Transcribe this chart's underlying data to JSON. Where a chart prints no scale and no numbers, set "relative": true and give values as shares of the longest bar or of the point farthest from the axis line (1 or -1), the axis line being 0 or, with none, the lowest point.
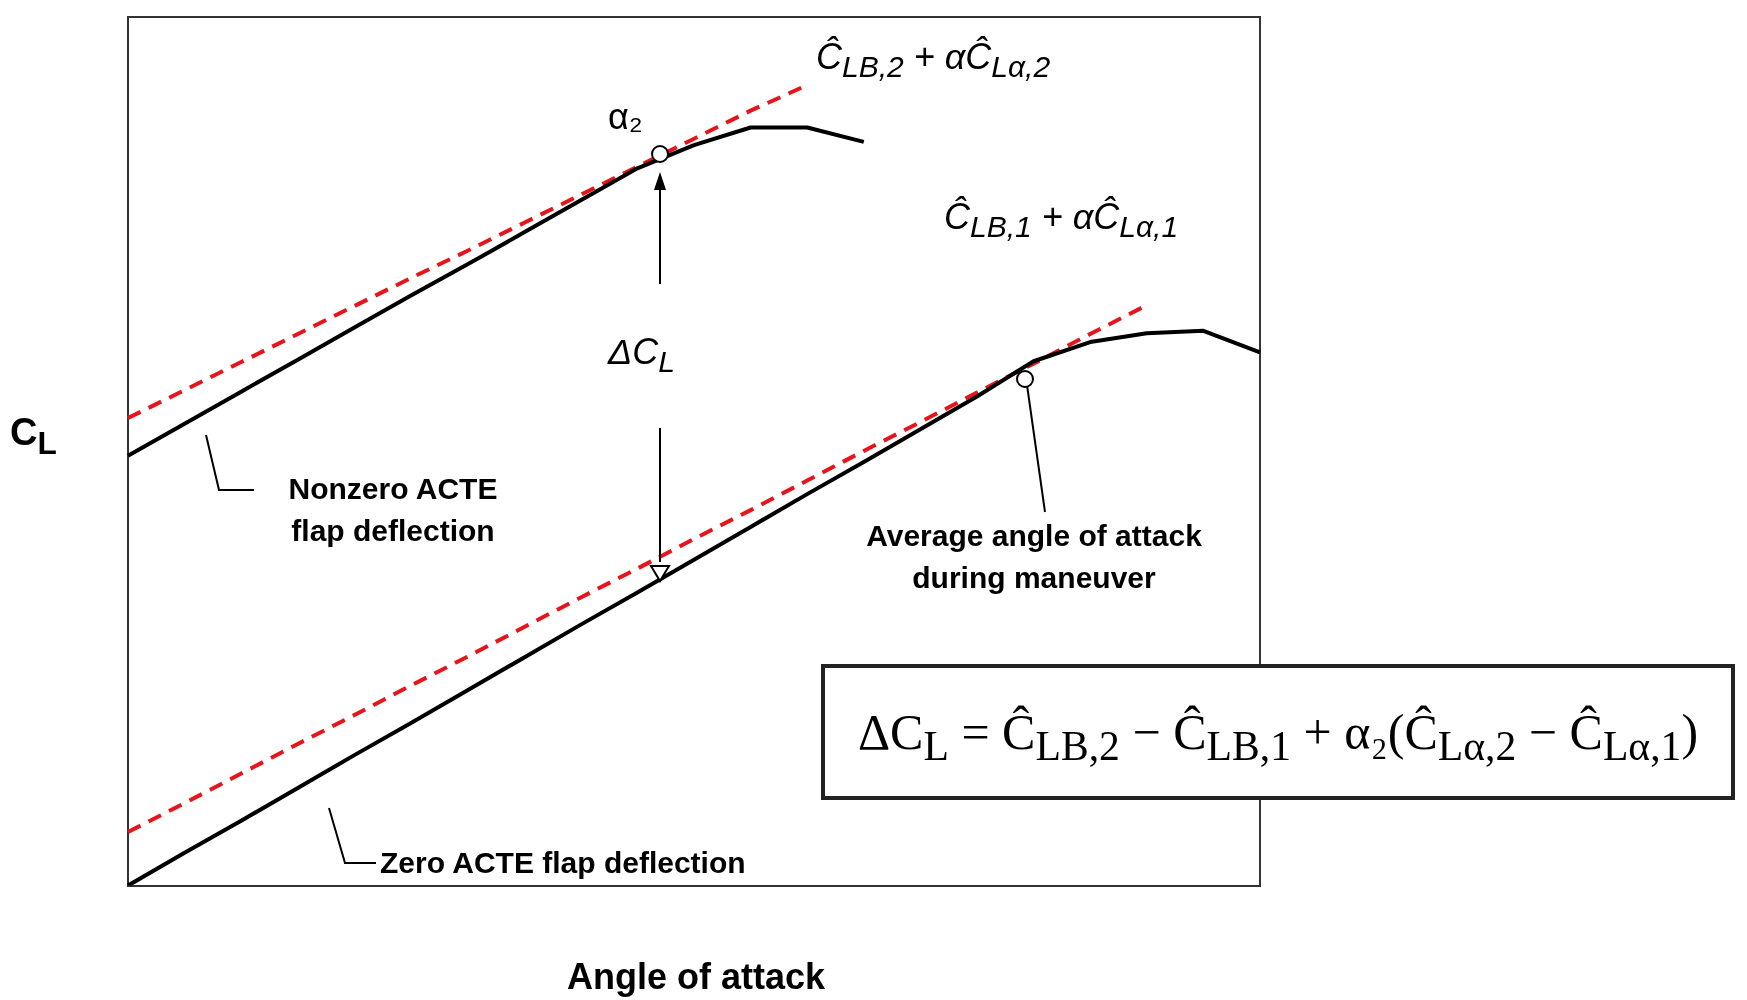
{
  "chart_data": {
    "type": "line",
    "relative": true,
    "xlabel": "Angle of attack",
    "ylabel": "C$_{L}$",
    "legend": false,
    "grid": false,
    "marker": "none",
    "categories": [
      null,
      null,
      null,
      null,
      null,
      null,
      null,
      null,
      null,
      null,
      null,
      null,
      null,
      null,
      null,
      null,
      null,
      null,
      null,
      null,
      null
    ],
    "series": [
      {
        "color": "#000000",
        "line_style": "solid",
        "values": [
          0,
          0.041,
          0.081,
          0.122,
          0.163,
          0.203,
          0.244,
          0.285,
          0.326,
          0.366,
          0.407,
          0.448,
          0.489,
          0.529,
          0.57,
          0.611,
          0.655,
          0.679,
          0.69,
          0.693,
          0.666
        ]
      },
      {
        "color": "#e8141b",
        "line_style": "dashed",
        "values": [
          0.067,
          0.103,
          0.14,
          0.177,
          0.213,
          0.25,
          0.286,
          0.323,
          0.36,
          0.396,
          0.433,
          0.469,
          0.506,
          0.543,
          0.579,
          0.616,
          0.652,
          0.689,
          0.725,
          null,
          null
        ]
      },
      {
        "color": "#000000",
        "line_style": "solid",
        "values": [
          0.537,
          0.577,
          0.617,
          0.657,
          0.697,
          0.737,
          0.776,
          0.816,
          0.856,
          0.896,
          0.925,
          0.947,
          0.947,
          0.929,
          null,
          null,
          null,
          null,
          null,
          null,
          null
        ]
      },
      {
        "color": "#e8141b",
        "line_style": "dashed",
        "values": [
          0.584,
          0.619,
          0.654,
          0.689,
          0.724,
          0.759,
          0.793,
          0.828,
          0.863,
          0.898,
          0.933,
          0.968,
          1,
          null,
          null,
          null,
          null,
          null,
          null,
          null,
          null
        ]
      }
    ],
    "annotations": [
      "Ĉ$_{LB,2}$ + αĈ$_{Lα,2}$",
      "α₂",
      "Ĉ$_{LB,1}$ + αĈ$_{Lα,1}$",
      "ΔC$_{L}$",
      "Nonzero ACTE flap deflection",
      "Average angle of attack during maneuver",
      "Zero ACTE flap deflection",
      "ΔC$_{L}$ = Ĉ$_{LB,2}$ − Ĉ$_{LB,1}$ + α₂(Ĉ$_{Lα,2}$ − Ĉ$_{Lα,1}$)"
    ]
  }
}
